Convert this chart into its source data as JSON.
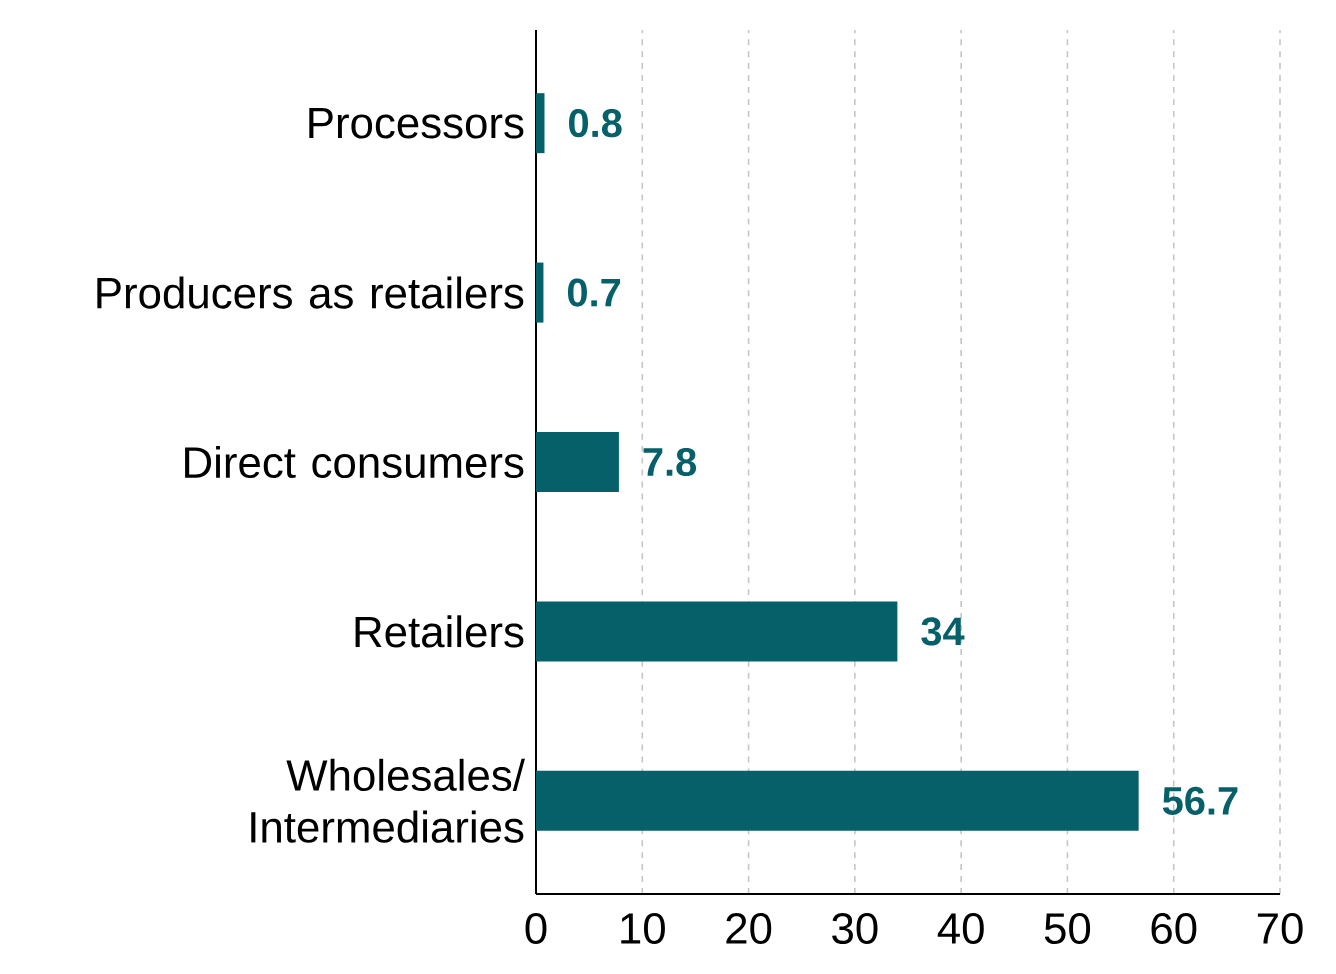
{
  "chart_data": {
    "type": "bar",
    "orientation": "horizontal",
    "categories": [
      "Processors",
      "Producers as retailers",
      "Direct consumers",
      "Retailers",
      "Wholesales/ Intermediaries"
    ],
    "values": [
      0.8,
      0.7,
      7.8,
      34,
      56.7
    ],
    "color": "#05606a",
    "xlim": [
      0,
      70
    ],
    "xticks": [
      0,
      10,
      20,
      30,
      40,
      50,
      60,
      70
    ],
    "grid": "x",
    "data_labels": true
  }
}
